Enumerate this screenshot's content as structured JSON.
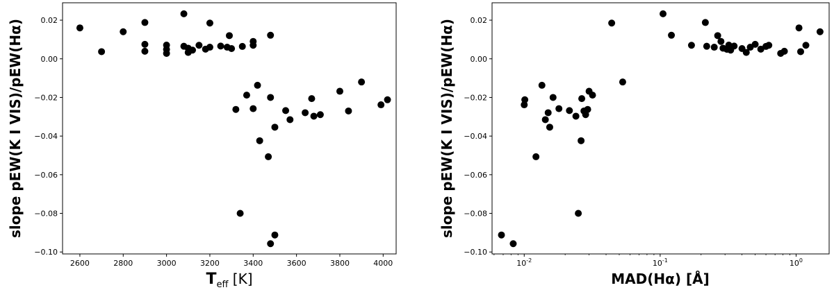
{
  "chart_data": [
    {
      "type": "scatter",
      "xlabel": "T_eff [K]",
      "ylabel": "slope pEW(K I VIS)/pEW(Hα)",
      "xscale": "linear",
      "xlim": [
        2520,
        4060
      ],
      "ylim": [
        -0.101,
        0.029
      ],
      "xticks": [
        2600,
        2800,
        3000,
        3200,
        3400,
        3600,
        3800,
        4000
      ],
      "xtick_labels": [
        "2600",
        "2800",
        "3000",
        "3200",
        "3400",
        "3600",
        "3800",
        "4000"
      ],
      "yticks": [
        0.02,
        0.0,
        -0.02,
        -0.04,
        -0.06,
        -0.08,
        -0.1
      ],
      "ytick_labels": [
        "0.02",
        "0.00",
        "−0.02",
        "−0.04",
        "−0.06",
        "−0.08",
        "−0.10"
      ],
      "grid": false,
      "color": "#000000",
      "points": [
        {
          "x": 2600,
          "y": 0.016
        },
        {
          "x": 2700,
          "y": 0.0037
        },
        {
          "x": 2800,
          "y": 0.014
        },
        {
          "x": 2900,
          "y": 0.0188
        },
        {
          "x": 2900,
          "y": 0.0075
        },
        {
          "x": 2900,
          "y": 0.0039
        },
        {
          "x": 3000,
          "y": 0.0071
        },
        {
          "x": 3000,
          "y": 0.0049
        },
        {
          "x": 3000,
          "y": 0.0028
        },
        {
          "x": 3080,
          "y": 0.0233
        },
        {
          "x": 3080,
          "y": 0.0065
        },
        {
          "x": 3100,
          "y": 0.0055
        },
        {
          "x": 3100,
          "y": 0.0033
        },
        {
          "x": 3120,
          "y": 0.0045
        },
        {
          "x": 3150,
          "y": 0.007
        },
        {
          "x": 3180,
          "y": 0.005
        },
        {
          "x": 3200,
          "y": 0.0185
        },
        {
          "x": 3200,
          "y": 0.006
        },
        {
          "x": 3250,
          "y": 0.0066
        },
        {
          "x": 3280,
          "y": 0.006
        },
        {
          "x": 3290,
          "y": 0.012
        },
        {
          "x": 3300,
          "y": 0.0053
        },
        {
          "x": 3350,
          "y": 0.0064
        },
        {
          "x": 3400,
          "y": 0.009
        },
        {
          "x": 3400,
          "y": 0.007
        },
        {
          "x": 3480,
          "y": 0.0122
        },
        {
          "x": 3320,
          "y": -0.0262
        },
        {
          "x": 3370,
          "y": -0.0188
        },
        {
          "x": 3400,
          "y": -0.0258
        },
        {
          "x": 3420,
          "y": -0.0137
        },
        {
          "x": 3430,
          "y": -0.0424
        },
        {
          "x": 3470,
          "y": -0.0507
        },
        {
          "x": 3480,
          "y": -0.02
        },
        {
          "x": 3500,
          "y": -0.0354
        },
        {
          "x": 3550,
          "y": -0.0268
        },
        {
          "x": 3570,
          "y": -0.0315
        },
        {
          "x": 3340,
          "y": -0.08
        },
        {
          "x": 3480,
          "y": -0.0957
        },
        {
          "x": 3500,
          "y": -0.0912
        },
        {
          "x": 3640,
          "y": -0.0279
        },
        {
          "x": 3670,
          "y": -0.0206
        },
        {
          "x": 3680,
          "y": -0.0297
        },
        {
          "x": 3710,
          "y": -0.0289
        },
        {
          "x": 3800,
          "y": -0.0168
        },
        {
          "x": 3840,
          "y": -0.027
        },
        {
          "x": 3900,
          "y": -0.012
        },
        {
          "x": 3990,
          "y": -0.0238
        },
        {
          "x": 4020,
          "y": -0.0212
        }
      ]
    },
    {
      "type": "scatter",
      "xlabel": "MAD(Hα) [Å]",
      "ylabel": "slope pEW(K I VIS)/pEW(Hα)",
      "xscale": "log",
      "xlim": [
        0.0058,
        1.75
      ],
      "ylim": [
        -0.101,
        0.029
      ],
      "xticks": [
        0.01,
        0.1,
        1
      ],
      "xtick_labels": [
        "10^-2",
        "10^-1",
        "10^0"
      ],
      "yticks": [
        0.02,
        0.0,
        -0.02,
        -0.04,
        -0.06,
        -0.08,
        -0.1
      ],
      "ytick_labels": [
        "0.02",
        "0.00",
        "−0.02",
        "−0.04",
        "−0.06",
        "−0.08",
        "−0.10"
      ],
      "grid": false,
      "color": "#000000",
      "points": [
        {
          "x": 0.0068,
          "y": -0.0912
        },
        {
          "x": 0.0083,
          "y": -0.0957
        },
        {
          "x": 0.01,
          "y": -0.0238
        },
        {
          "x": 0.0101,
          "y": -0.0212
        },
        {
          "x": 0.0122,
          "y": -0.0507
        },
        {
          "x": 0.0135,
          "y": -0.0137
        },
        {
          "x": 0.0143,
          "y": -0.0315
        },
        {
          "x": 0.015,
          "y": -0.0279
        },
        {
          "x": 0.0154,
          "y": -0.0354
        },
        {
          "x": 0.0163,
          "y": -0.02
        },
        {
          "x": 0.018,
          "y": -0.0258
        },
        {
          "x": 0.0215,
          "y": -0.0268
        },
        {
          "x": 0.024,
          "y": -0.0297
        },
        {
          "x": 0.025,
          "y": -0.08
        },
        {
          "x": 0.0262,
          "y": -0.0424
        },
        {
          "x": 0.0265,
          "y": -0.0206
        },
        {
          "x": 0.0275,
          "y": -0.027
        },
        {
          "x": 0.0283,
          "y": -0.0289
        },
        {
          "x": 0.0293,
          "y": -0.0262
        },
        {
          "x": 0.03,
          "y": -0.0168
        },
        {
          "x": 0.0318,
          "y": -0.0188
        },
        {
          "x": 0.044,
          "y": 0.0185
        },
        {
          "x": 0.053,
          "y": -0.012
        },
        {
          "x": 0.105,
          "y": 0.0233
        },
        {
          "x": 0.121,
          "y": 0.0122
        },
        {
          "x": 0.17,
          "y": 0.007
        },
        {
          "x": 0.215,
          "y": 0.0188
        },
        {
          "x": 0.22,
          "y": 0.0065
        },
        {
          "x": 0.25,
          "y": 0.006
        },
        {
          "x": 0.265,
          "y": 0.012
        },
        {
          "x": 0.28,
          "y": 0.009
        },
        {
          "x": 0.29,
          "y": 0.0055
        },
        {
          "x": 0.31,
          "y": 0.0049
        },
        {
          "x": 0.32,
          "y": 0.0071
        },
        {
          "x": 0.33,
          "y": 0.0045
        },
        {
          "x": 0.35,
          "y": 0.0066
        },
        {
          "x": 0.4,
          "y": 0.0053
        },
        {
          "x": 0.43,
          "y": 0.0033
        },
        {
          "x": 0.46,
          "y": 0.006
        },
        {
          "x": 0.5,
          "y": 0.0075
        },
        {
          "x": 0.55,
          "y": 0.005
        },
        {
          "x": 0.6,
          "y": 0.0064
        },
        {
          "x": 0.63,
          "y": 0.007
        },
        {
          "x": 0.77,
          "y": 0.0028
        },
        {
          "x": 0.82,
          "y": 0.0039
        },
        {
          "x": 1.05,
          "y": 0.016
        },
        {
          "x": 1.08,
          "y": 0.0037
        },
        {
          "x": 1.18,
          "y": 0.007
        },
        {
          "x": 1.5,
          "y": 0.014
        }
      ]
    }
  ]
}
